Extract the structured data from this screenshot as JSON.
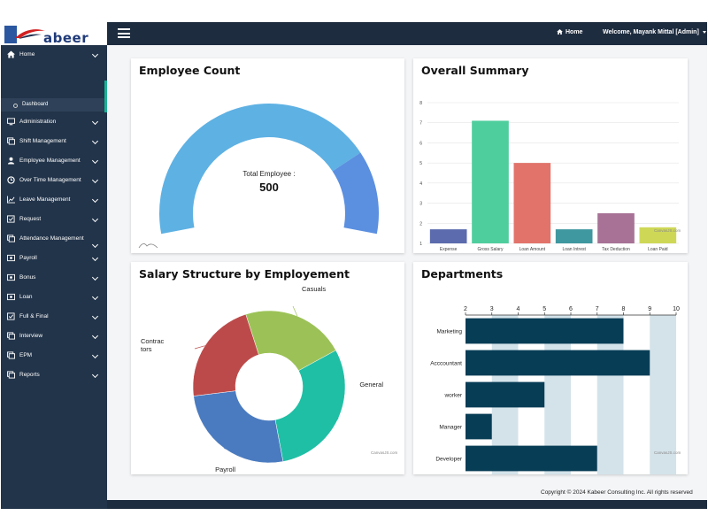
{
  "header": {
    "logo_text": "abeer",
    "home_label": "Home",
    "welcome_text": "Welcome, Mayank Mittal [Admin]"
  },
  "sidebar": {
    "items": [
      {
        "label": "Home",
        "icon": "home-icon"
      },
      {
        "label": "Administration",
        "icon": "monitor-icon"
      },
      {
        "label": "Shift Management",
        "icon": "copy-icon"
      },
      {
        "label": "Employee Management",
        "icon": "user-icon"
      },
      {
        "label": "Over Time Management",
        "icon": "clock-icon"
      },
      {
        "label": "Leave Management",
        "icon": "chart-icon"
      },
      {
        "label": "Request",
        "icon": "check-square-icon"
      },
      {
        "label": "Attendance Management",
        "icon": "copy-icon"
      },
      {
        "label": "Payroll",
        "icon": "money-icon"
      },
      {
        "label": "Bonus",
        "icon": "money-icon"
      },
      {
        "label": "Loan",
        "icon": "money-icon"
      },
      {
        "label": "Full & Final",
        "icon": "check-square-icon"
      },
      {
        "label": "Interview",
        "icon": "copy-icon"
      },
      {
        "label": "EPM",
        "icon": "copy-icon"
      },
      {
        "label": "Reports",
        "icon": "copy-icon"
      }
    ],
    "sub_item": "Dashboard"
  },
  "panels": {
    "employee_count": {
      "title": "Employee Count"
    },
    "overall_summary": {
      "title": "Overall Summary",
      "credit": "CanvasJS.com"
    },
    "salary_structure": {
      "title": "Salary Structure by Employement",
      "credit": "CanvasJS.com"
    },
    "departments": {
      "title": "Departments",
      "credit": "CanvasJS.com"
    }
  },
  "footer": {
    "copyright": "Copyright © 2024 Kabeer Consulting Inc. All rights reserved"
  },
  "colors": {
    "topbar": "#1e2c3f",
    "sidebar": "#22344a",
    "accent": "#1ab394"
  },
  "chart_data": [
    {
      "type": "gauge",
      "label": "Total Employee :",
      "value": 500,
      "fill_fraction": 0.78,
      "colors": [
        "#5eb1e3",
        "#5b8fe0"
      ]
    },
    {
      "type": "bar",
      "categories": [
        "Expense",
        "Gross Salary",
        "Loan Amount",
        "Loan Intrest",
        "Tax Deduction",
        "Loan Paid"
      ],
      "values": [
        1.7,
        7.1,
        5.0,
        1.7,
        2.5,
        1.8
      ],
      "colors": [
        "#5b6bae",
        "#4fce9d",
        "#e2736a",
        "#3f97a0",
        "#a77296",
        "#cfd856"
      ],
      "ylim": [
        1,
        8
      ],
      "yticks": [
        "1",
        "2",
        "3",
        "4",
        "5",
        "6",
        "7",
        "8"
      ],
      "grid": true
    },
    {
      "type": "pie",
      "donut": true,
      "labels": [
        "Casuals",
        "General",
        "Payroll",
        "Contrac tors"
      ],
      "values": [
        22,
        30,
        26,
        22
      ],
      "colors": [
        "#9cc257",
        "#1fbfa5",
        "#4a7bc0",
        "#bd4a4a"
      ]
    },
    {
      "type": "bar",
      "orientation": "horizontal",
      "categories": [
        "Marketing",
        "Acccountant",
        "worker",
        "Manager",
        "Developer"
      ],
      "values": [
        8,
        9,
        5,
        3,
        7
      ],
      "xlim": [
        2,
        10
      ],
      "xticks": [
        "2",
        "3",
        "4",
        "5",
        "6",
        "7",
        "8",
        "9",
        "10"
      ],
      "color": "#083d56",
      "band_color": "#d4e3ea"
    }
  ]
}
